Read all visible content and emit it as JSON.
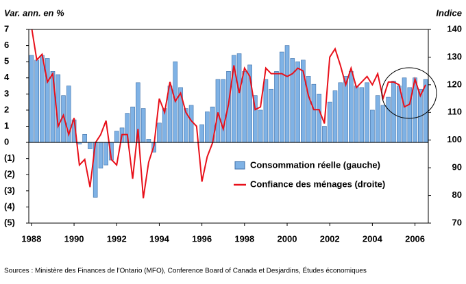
{
  "chart_data": {
    "type": "bar_line",
    "ylabel": "Var. ann. en %",
    "y2label": "Indice",
    "source": "Sources : Ministère des Finances de l'Ontario (MFO), Conference Board of Canada et Desjardins, Études économiques",
    "categories": [
      "1988",
      null,
      null,
      null,
      null,
      null,
      null,
      null,
      "1990",
      null,
      null,
      null,
      null,
      null,
      null,
      null,
      "1992",
      null,
      null,
      null,
      null,
      null,
      null,
      null,
      "1994",
      null,
      null,
      null,
      null,
      null,
      null,
      null,
      "1996",
      null,
      null,
      null,
      null,
      null,
      null,
      null,
      "1998",
      null,
      null,
      null,
      null,
      null,
      null,
      null,
      "2000",
      null,
      null,
      null,
      null,
      null,
      null,
      null,
      "2002",
      null,
      null,
      null,
      null,
      null,
      null,
      null,
      "2004",
      null,
      null,
      null,
      null,
      null,
      null,
      null,
      "2006",
      null,
      null
    ],
    "series": [
      {
        "name": "Consommation réelle (gauche)",
        "color": "#7fb2e5",
        "axis": "y",
        "values": [
          5.4,
          5.1,
          5.4,
          5.2,
          4.4,
          4.2,
          2.9,
          3.5,
          1.4,
          -0.1,
          0.5,
          -0.4,
          -3.4,
          -1.6,
          -1.4,
          -1.1,
          0.7,
          0.9,
          1.8,
          2.2,
          3.7,
          2.1,
          0.2,
          -0.6,
          1.2,
          2.1,
          3.5,
          5.0,
          3.4,
          2.1,
          2.3,
          0.0,
          1.1,
          1.9,
          2.2,
          3.9,
          3.9,
          4.4,
          5.4,
          5.5,
          4.4,
          4.8,
          2.9,
          2.0,
          3.9,
          3.3,
          4.4,
          5.6,
          6.0,
          5.2,
          5.0,
          5.1,
          4.1,
          3.6,
          3.0,
          1.0,
          2.5,
          3.2,
          3.7,
          4.1,
          4.4,
          3.5,
          3.4,
          3.7,
          2.0,
          2.9,
          2.3,
          2.8,
          3.8,
          3.5,
          4.0,
          3.4,
          4.0,
          3.3,
          3.9
        ]
      },
      {
        "name": "Confiance des ménages (droite)",
        "color": "#e8101a",
        "axis": "y2",
        "values": [
          141,
          129,
          131,
          121,
          124,
          105,
          109,
          102,
          108,
          91,
          93,
          83,
          99,
          102,
          107,
          93,
          91,
          102,
          102,
          86,
          104,
          79,
          92,
          98,
          115,
          110,
          121,
          114,
          117,
          110,
          107,
          105,
          85,
          94,
          99,
          110,
          104,
          113,
          127,
          117,
          126,
          123,
          111,
          112,
          126,
          124,
          124,
          124,
          123,
          124,
          126,
          125,
          116,
          111,
          111,
          106,
          130,
          133,
          127,
          120,
          126,
          119,
          121,
          123,
          120,
          124,
          115,
          121,
          121,
          120,
          112,
          113,
          122,
          116,
          120
        ]
      }
    ],
    "ylim": [
      -5,
      7
    ],
    "yticks": [
      {
        "value": -5,
        "label": "(5)"
      },
      {
        "value": -4,
        "label": "(4)"
      },
      {
        "value": -3,
        "label": "(3)"
      },
      {
        "value": -2,
        "label": "(2)"
      },
      {
        "value": -1,
        "label": "(1)"
      },
      0,
      1,
      2,
      3,
      4,
      5,
      6,
      7
    ],
    "y2lim": [
      70,
      140
    ],
    "y2ticks": [
      70,
      80,
      90,
      100,
      110,
      120,
      130,
      140
    ]
  }
}
